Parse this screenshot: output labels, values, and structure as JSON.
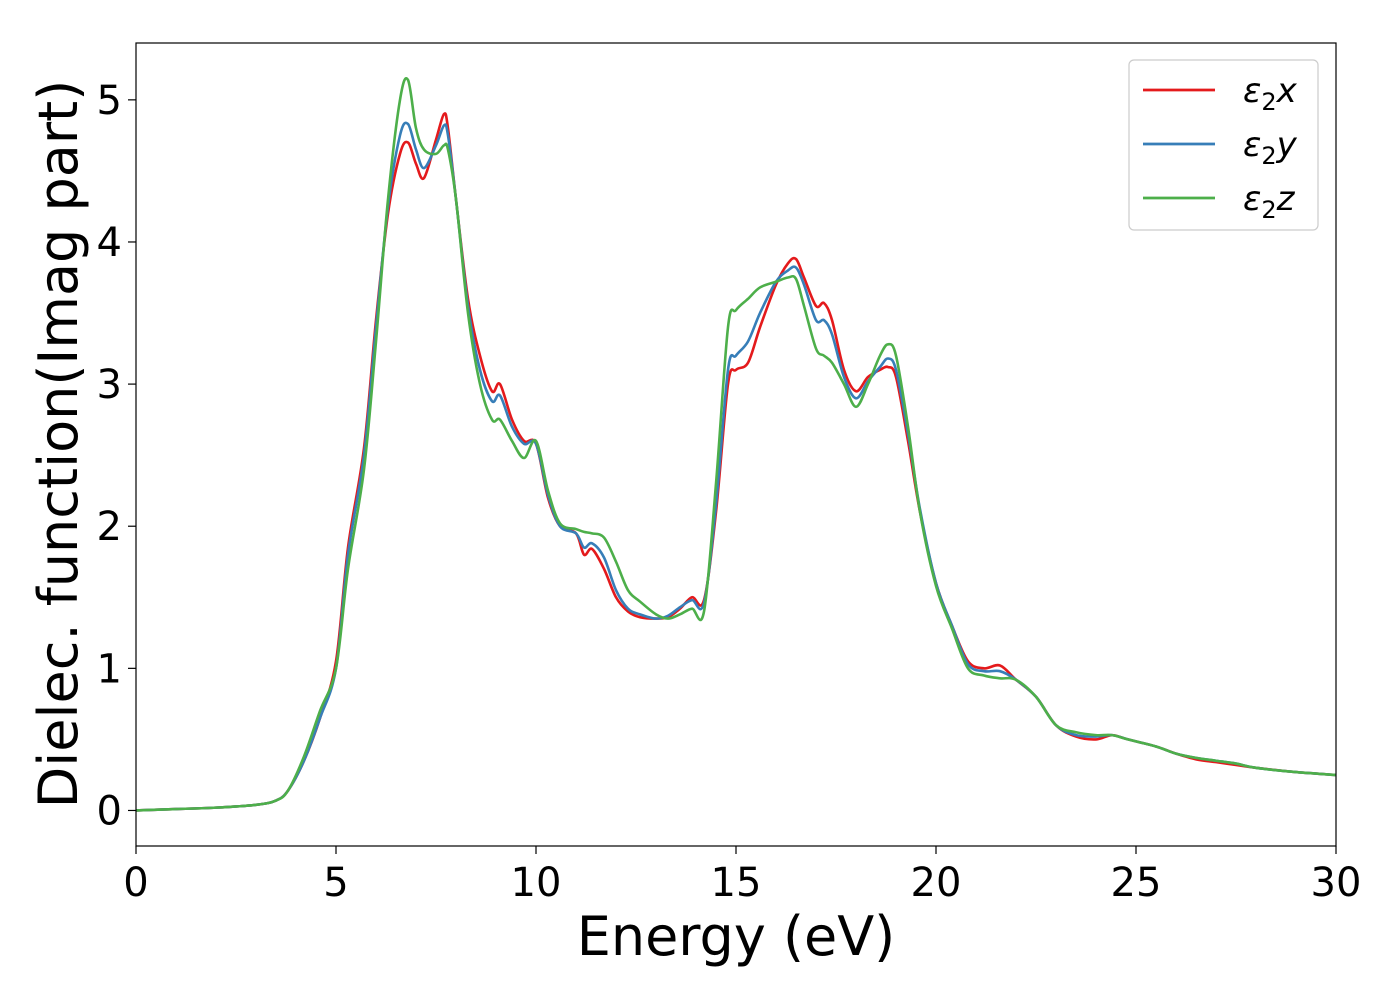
{
  "chart_data": {
    "type": "line",
    "xlabel": "Energy (eV)",
    "ylabel": "Dielec. function(Imag part)",
    "xlim": [
      0,
      30
    ],
    "ylim": [
      -0.25,
      5.4
    ],
    "xticks": [
      0,
      5,
      10,
      15,
      20,
      25,
      30
    ],
    "yticks": [
      0,
      1,
      2,
      3,
      4,
      5
    ],
    "grid": false,
    "legend_position": "top-right",
    "series": [
      {
        "name": "ε2x",
        "legend_base": "ε",
        "legend_sub": "2",
        "legend_suffix": "x",
        "color": "#e41a1c",
        "x": [
          0,
          1,
          2,
          3,
          3.5,
          3.8,
          4.2,
          4.6,
          5.0,
          5.3,
          5.7,
          6.0,
          6.3,
          6.6,
          6.8,
          7.0,
          7.2,
          7.5,
          7.7,
          7.8,
          8.0,
          8.3,
          8.6,
          8.9,
          9.1,
          9.4,
          9.7,
          10.0,
          10.3,
          10.6,
          11.0,
          11.2,
          11.4,
          11.7,
          12.0,
          12.3,
          12.6,
          13.0,
          13.3,
          13.6,
          13.9,
          14.2,
          14.5,
          14.8,
          15.0,
          15.3,
          15.6,
          16.0,
          16.3,
          16.5,
          16.7,
          17.0,
          17.2,
          17.4,
          17.7,
          18.0,
          18.3,
          18.6,
          18.8,
          19.0,
          19.3,
          19.6,
          20.0,
          20.4,
          20.8,
          21.2,
          21.6,
          22.0,
          22.5,
          23.0,
          23.5,
          24.0,
          24.4,
          24.8,
          25.5,
          26.0,
          26.5,
          27.0,
          27.5,
          28.0,
          29.0,
          30.0
        ],
        "y": [
          0.0,
          0.01,
          0.02,
          0.04,
          0.07,
          0.14,
          0.35,
          0.65,
          1.05,
          1.85,
          2.55,
          3.45,
          4.2,
          4.62,
          4.7,
          4.55,
          4.45,
          4.72,
          4.9,
          4.8,
          4.3,
          3.6,
          3.2,
          2.95,
          3.0,
          2.75,
          2.6,
          2.58,
          2.2,
          2.0,
          1.95,
          1.8,
          1.84,
          1.7,
          1.5,
          1.4,
          1.36,
          1.35,
          1.36,
          1.42,
          1.5,
          1.48,
          2.1,
          3.0,
          3.1,
          3.15,
          3.4,
          3.7,
          3.85,
          3.88,
          3.75,
          3.55,
          3.57,
          3.45,
          3.1,
          2.95,
          3.05,
          3.1,
          3.12,
          3.05,
          2.6,
          2.1,
          1.6,
          1.3,
          1.05,
          1.0,
          1.02,
          0.92,
          0.8,
          0.6,
          0.52,
          0.5,
          0.53,
          0.5,
          0.45,
          0.4,
          0.36,
          0.34,
          0.32,
          0.3,
          0.27,
          0.25
        ]
      },
      {
        "name": "ε2y",
        "legend_base": "ε",
        "legend_sub": "2",
        "legend_suffix": "y",
        "color": "#377eb8",
        "x": [
          0,
          1,
          2,
          3,
          3.5,
          3.8,
          4.2,
          4.6,
          5.0,
          5.3,
          5.7,
          6.0,
          6.3,
          6.6,
          6.8,
          7.0,
          7.2,
          7.5,
          7.7,
          7.8,
          8.0,
          8.3,
          8.6,
          8.9,
          9.1,
          9.4,
          9.7,
          10.0,
          10.3,
          10.6,
          11.0,
          11.2,
          11.4,
          11.7,
          12.0,
          12.3,
          12.6,
          13.0,
          13.3,
          13.6,
          13.9,
          14.2,
          14.5,
          14.8,
          15.0,
          15.3,
          15.6,
          16.0,
          16.3,
          16.5,
          16.7,
          17.0,
          17.2,
          17.4,
          17.7,
          18.0,
          18.3,
          18.6,
          18.8,
          19.0,
          19.3,
          19.6,
          20.0,
          20.4,
          20.8,
          21.2,
          21.6,
          22.0,
          22.5,
          23.0,
          23.5,
          24.0,
          24.4,
          24.8,
          25.5,
          26.0,
          26.5,
          27.0,
          27.5,
          28.0,
          29.0,
          30.0
        ],
        "y": [
          0.0,
          0.01,
          0.02,
          0.04,
          0.07,
          0.14,
          0.35,
          0.65,
          1.0,
          1.8,
          2.5,
          3.4,
          4.25,
          4.75,
          4.83,
          4.65,
          4.52,
          4.68,
          4.82,
          4.75,
          4.3,
          3.55,
          3.1,
          2.88,
          2.92,
          2.7,
          2.58,
          2.58,
          2.22,
          2.0,
          1.95,
          1.85,
          1.88,
          1.78,
          1.55,
          1.42,
          1.38,
          1.35,
          1.37,
          1.43,
          1.48,
          1.46,
          2.15,
          3.1,
          3.2,
          3.3,
          3.5,
          3.72,
          3.8,
          3.82,
          3.7,
          3.45,
          3.45,
          3.35,
          3.05,
          2.9,
          3.02,
          3.12,
          3.18,
          3.1,
          2.65,
          2.12,
          1.6,
          1.3,
          1.03,
          0.98,
          0.98,
          0.92,
          0.8,
          0.6,
          0.53,
          0.52,
          0.53,
          0.5,
          0.45,
          0.4,
          0.37,
          0.35,
          0.33,
          0.3,
          0.27,
          0.25
        ]
      },
      {
        "name": "ε2z",
        "legend_base": "ε",
        "legend_sub": "2",
        "legend_suffix": "z",
        "color": "#4daf4a",
        "x": [
          0,
          1,
          2,
          3,
          3.5,
          3.8,
          4.2,
          4.6,
          5.0,
          5.3,
          5.7,
          6.0,
          6.3,
          6.6,
          6.8,
          7.0,
          7.2,
          7.5,
          7.7,
          7.8,
          8.0,
          8.3,
          8.6,
          8.9,
          9.1,
          9.4,
          9.7,
          10.0,
          10.3,
          10.6,
          11.0,
          11.2,
          11.4,
          11.7,
          12.0,
          12.3,
          12.6,
          13.0,
          13.3,
          13.6,
          13.9,
          14.2,
          14.5,
          14.8,
          15.0,
          15.3,
          15.6,
          16.0,
          16.3,
          16.5,
          16.7,
          17.0,
          17.2,
          17.4,
          17.7,
          18.0,
          18.3,
          18.6,
          18.8,
          19.0,
          19.3,
          19.6,
          20.0,
          20.4,
          20.8,
          21.2,
          21.6,
          22.0,
          22.5,
          23.0,
          23.5,
          24.0,
          24.4,
          24.8,
          25.5,
          26.0,
          26.5,
          27.0,
          27.5,
          28.0,
          29.0,
          30.0
        ],
        "y": [
          0.0,
          0.01,
          0.02,
          0.04,
          0.07,
          0.14,
          0.38,
          0.7,
          1.0,
          1.7,
          2.4,
          3.3,
          4.3,
          5.0,
          5.14,
          4.8,
          4.65,
          4.62,
          4.68,
          4.65,
          4.3,
          3.5,
          3.0,
          2.75,
          2.75,
          2.6,
          2.48,
          2.6,
          2.25,
          2.02,
          1.98,
          1.96,
          1.95,
          1.92,
          1.75,
          1.55,
          1.47,
          1.38,
          1.35,
          1.38,
          1.42,
          1.4,
          2.3,
          3.4,
          3.52,
          3.6,
          3.68,
          3.72,
          3.75,
          3.74,
          3.55,
          3.25,
          3.2,
          3.15,
          3.0,
          2.84,
          3.0,
          3.2,
          3.28,
          3.2,
          2.7,
          2.1,
          1.58,
          1.28,
          1.0,
          0.95,
          0.93,
          0.92,
          0.8,
          0.6,
          0.55,
          0.53,
          0.53,
          0.5,
          0.45,
          0.4,
          0.37,
          0.35,
          0.33,
          0.3,
          0.27,
          0.25
        ]
      }
    ]
  }
}
